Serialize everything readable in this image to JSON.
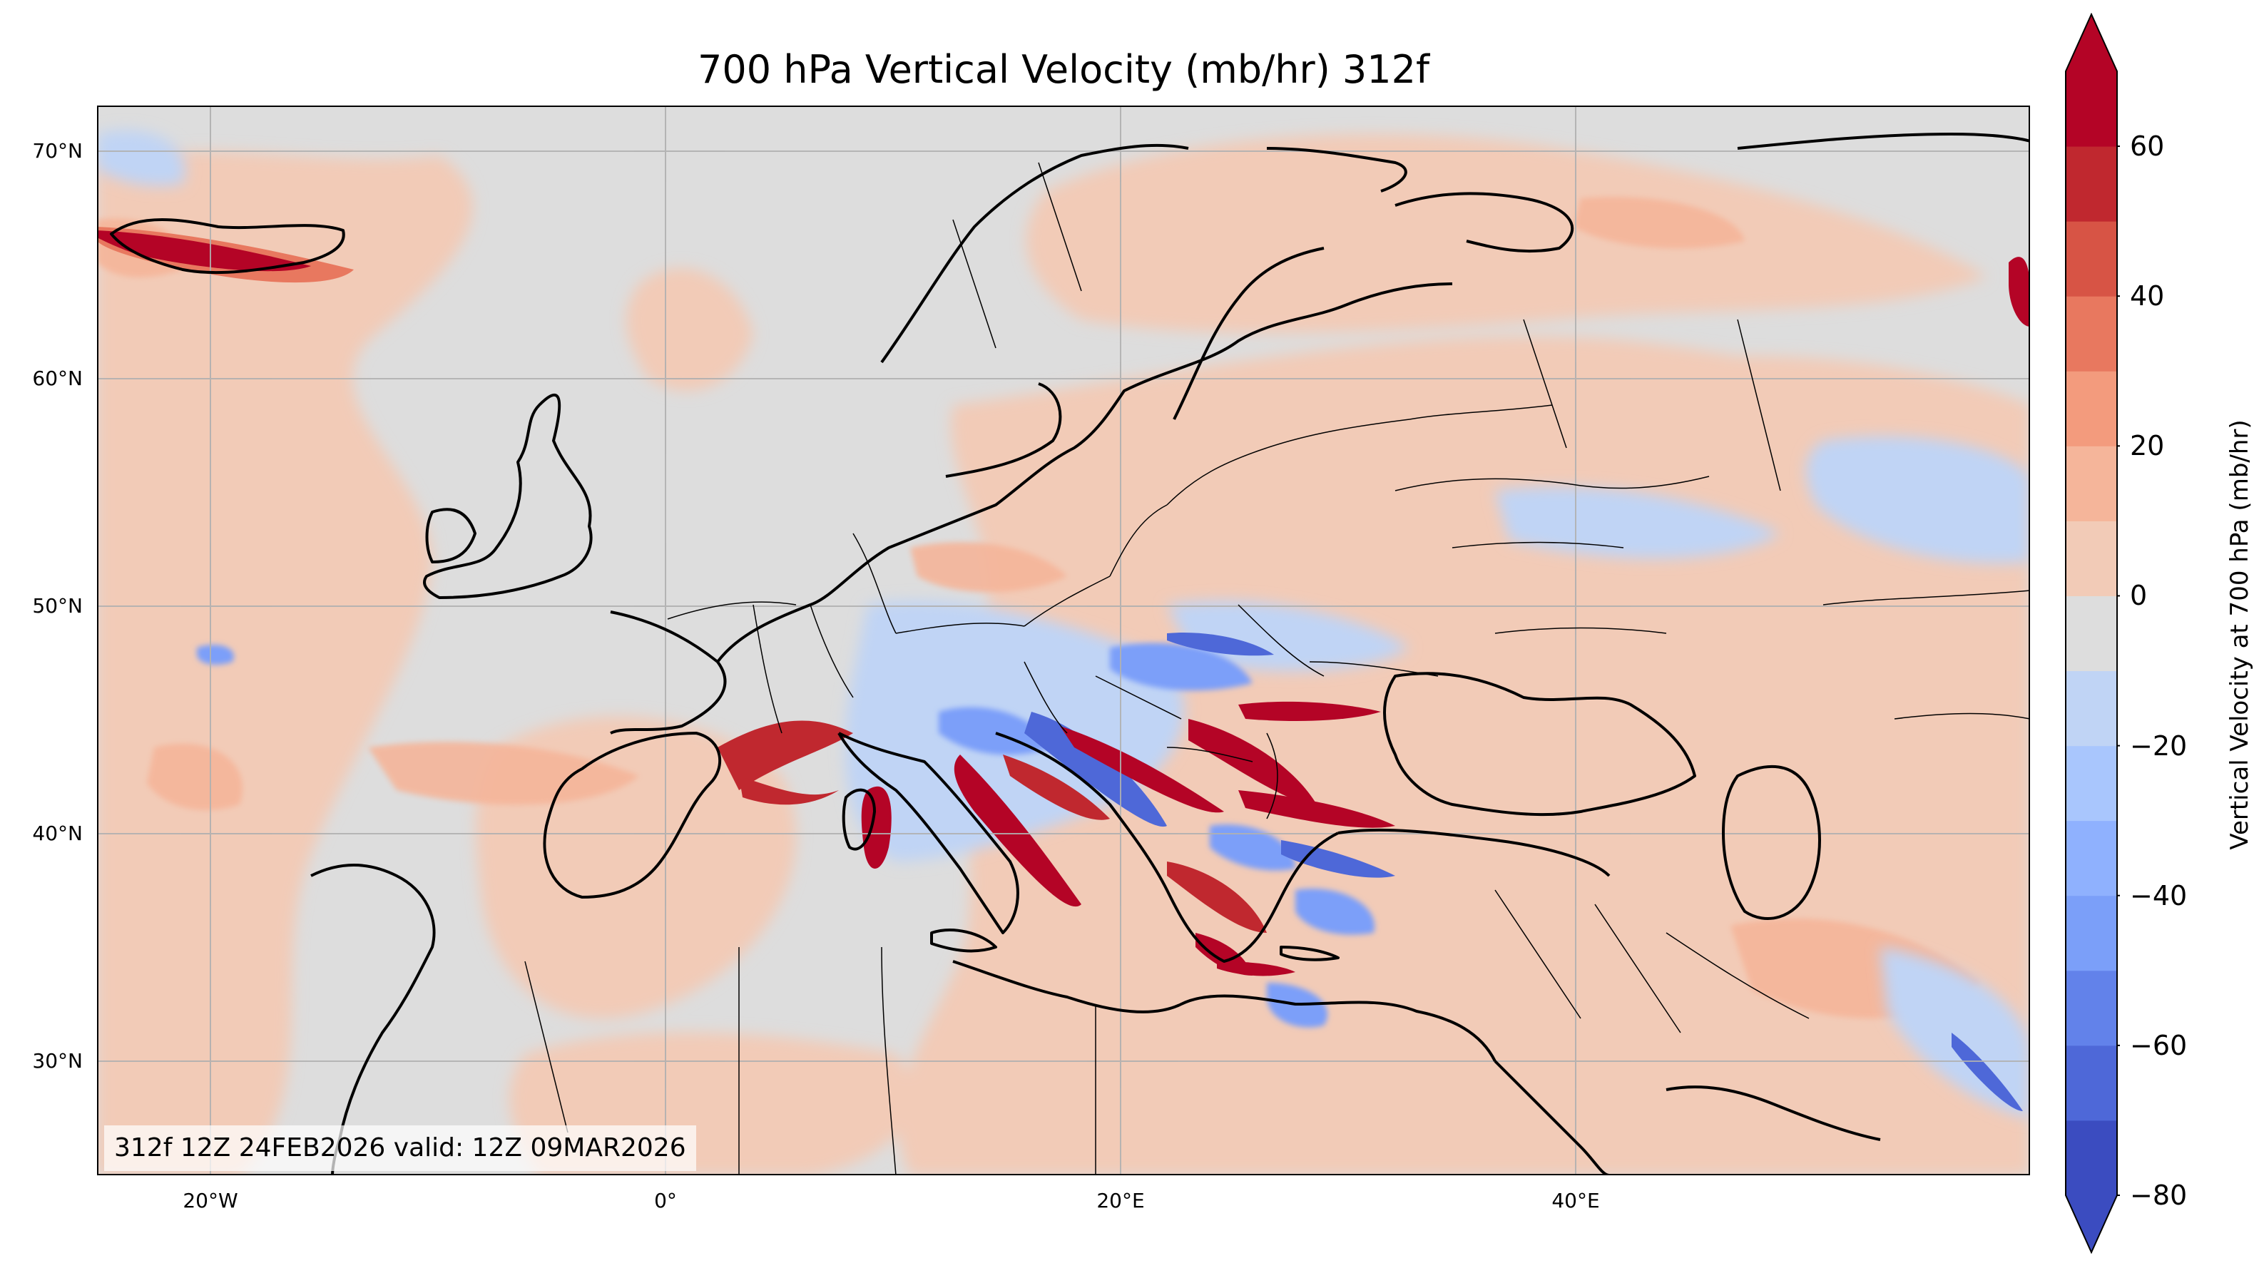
{
  "title": "700 hPa Vertical Velocity (mb/hr) 312f",
  "timestamp": "312f 12Z 24FEB2026 valid: 12Z 09MAR2026",
  "colorbar": {
    "label": "Vertical Velocity at 700 hPa (mb/hr)",
    "range": [
      -80,
      70
    ],
    "extend": "both",
    "ticks": [
      "−80",
      "−60",
      "−40",
      "−20",
      "0",
      "20",
      "40",
      "60"
    ],
    "tick_values": [
      -80,
      -60,
      -40,
      -20,
      0,
      20,
      40,
      60
    ],
    "levels": [
      -80,
      -70,
      -60,
      -50,
      -40,
      -30,
      -20,
      -10,
      0,
      10,
      20,
      30,
      40,
      50,
      60,
      70
    ],
    "colors": [
      "#3b4cc0",
      "#4e68d8",
      "#6282ea",
      "#7b9ff9",
      "#8fb1fe",
      "#a9c6fd",
      "#c0d4f5",
      "#dddddd",
      "#f2cbb7",
      "#f5b59a",
      "#f39b7d",
      "#e8785f",
      "#d75445",
      "#c0282f",
      "#b40426"
    ],
    "under_color": "#3b4cc0",
    "over_color": "#b40426"
  },
  "map": {
    "projection": "PlateCarree",
    "lon_range": [
      -25,
      60
    ],
    "lat_range": [
      25,
      72
    ],
    "background_color": "#dddddd",
    "lat_labels": [
      "70°N",
      "60°N",
      "50°N",
      "40°N",
      "30°N"
    ],
    "lat_values": [
      70,
      60,
      50,
      40,
      30
    ],
    "lon_labels": [
      "20°W",
      "0°",
      "20°E",
      "40°E"
    ],
    "lon_values": [
      -20,
      0,
      20,
      40
    ],
    "gridlines": true
  }
}
